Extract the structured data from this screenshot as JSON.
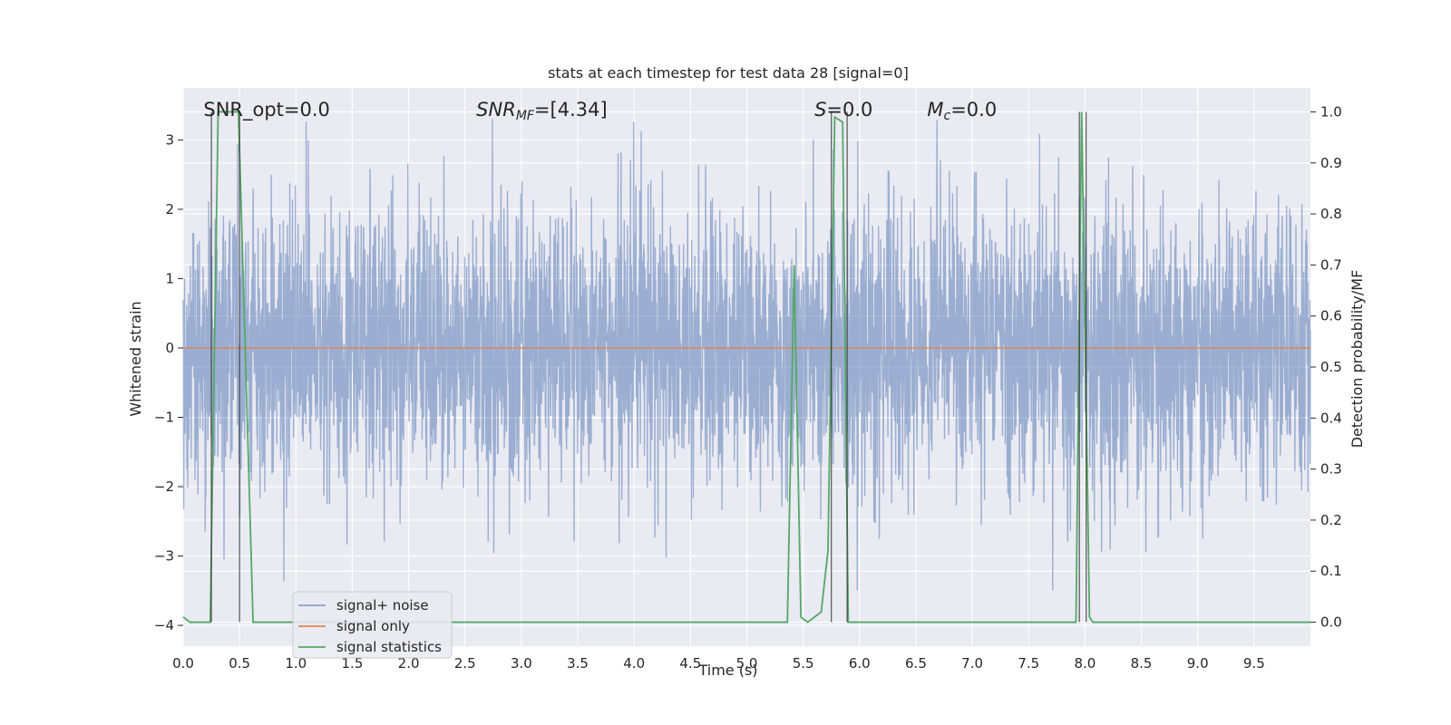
{
  "chart_data": {
    "type": "line",
    "title": "stats at each timestep for test data 28 [signal=0]",
    "xlabel": "Time (s)",
    "ylabel": "Whitened strain",
    "y2label": "Detection probability/MF",
    "xlim": [
      0.0,
      10.0
    ],
    "ylim": [
      -4.3,
      3.75
    ],
    "y2lim": [
      -0.047,
      1.047
    ],
    "x_ticks": [
      0.0,
      0.5,
      1.0,
      1.5,
      2.0,
      2.5,
      3.0,
      3.5,
      4.0,
      4.5,
      5.0,
      5.5,
      6.0,
      6.5,
      7.0,
      7.5,
      8.0,
      8.5,
      9.0,
      9.5
    ],
    "x_tick_labels": [
      "0.0",
      "0.5",
      "1.0",
      "1.5",
      "2.0",
      "2.5",
      "3.0",
      "3.5",
      "4.0",
      "4.5",
      "5.0",
      "5.5",
      "6.0",
      "6.5",
      "7.0",
      "7.5",
      "8.0",
      "8.5",
      "9.0",
      "9.5"
    ],
    "y_ticks": [
      -4,
      -3,
      -2,
      -1,
      0,
      1,
      2,
      3
    ],
    "y_tick_labels": [
      "−4",
      "−3",
      "−2",
      "−1",
      "0",
      "1",
      "2",
      "3"
    ],
    "y2_ticks": [
      0.0,
      0.1,
      0.2,
      0.3,
      0.4,
      0.5,
      0.6,
      0.7,
      0.8,
      0.9,
      1.0
    ],
    "y2_tick_labels": [
      "0.0",
      "0.1",
      "0.2",
      "0.3",
      "0.4",
      "0.5",
      "0.6",
      "0.7",
      "0.8",
      "0.9",
      "1.0"
    ],
    "grid": true,
    "legend_position": "lower-left",
    "annotations": [
      {
        "text": "SNR_opt=0.0",
        "x": 0.18,
        "y": 3.45
      },
      {
        "text": "SNR_MF=[4.34]",
        "x": 2.6,
        "y": 3.45
      },
      {
        "text": "S=0.0",
        "x": 5.6,
        "y": 3.45
      },
      {
        "text": "M_c=0.0",
        "x": 6.6,
        "y": 3.45
      }
    ],
    "series": [
      {
        "name": "signal+ noise",
        "axis": "left",
        "color": "#4c72b0",
        "description_of_values": "white gaussian noise, roughly N(0,1) with peaks to about ±3.3",
        "noise_sigma": 1.0,
        "x_range": [
          0.0,
          10.0
        ]
      },
      {
        "name": "signal only",
        "axis": "left",
        "color": "#dd8452",
        "x": [
          0.0,
          10.0
        ],
        "y": [
          0.0,
          0.0
        ]
      },
      {
        "name": "signal statistics",
        "axis": "right",
        "color": "#55a868",
        "x": [
          0.0,
          0.06,
          0.24,
          0.31,
          0.49,
          0.62,
          0.64,
          5.36,
          5.42,
          5.48,
          5.54,
          5.6,
          5.66,
          5.72,
          5.78,
          5.85,
          5.9,
          5.96,
          7.92,
          7.97,
          8.04,
          8.07,
          10.0
        ],
        "y": [
          0.01,
          0.0,
          0.0,
          1.0,
          1.0,
          0.0,
          0.0,
          0.0,
          0.7,
          0.01,
          0.0,
          0.01,
          0.02,
          0.14,
          0.99,
          0.98,
          0.0,
          0.0,
          0.0,
          1.0,
          0.01,
          0.0,
          0.0
        ]
      },
      {
        "name": "",
        "axis": "right",
        "color": "#2d2d2d",
        "kind": "vertical-markers",
        "x": [
          0.25,
          0.5,
          5.75,
          5.89,
          7.95,
          8.01
        ],
        "y_top": 1.0,
        "y_bottom": 0.0
      }
    ],
    "legend": [
      {
        "label": "signal+ noise",
        "color": "#4c72b0"
      },
      {
        "label": "signal only",
        "color": "#dd8452"
      },
      {
        "label": "signal statistics",
        "color": "#55a868"
      }
    ],
    "colors": {
      "axes_bg": "#eaeaf2",
      "grid": "#ffffff",
      "text": "#262626"
    }
  }
}
